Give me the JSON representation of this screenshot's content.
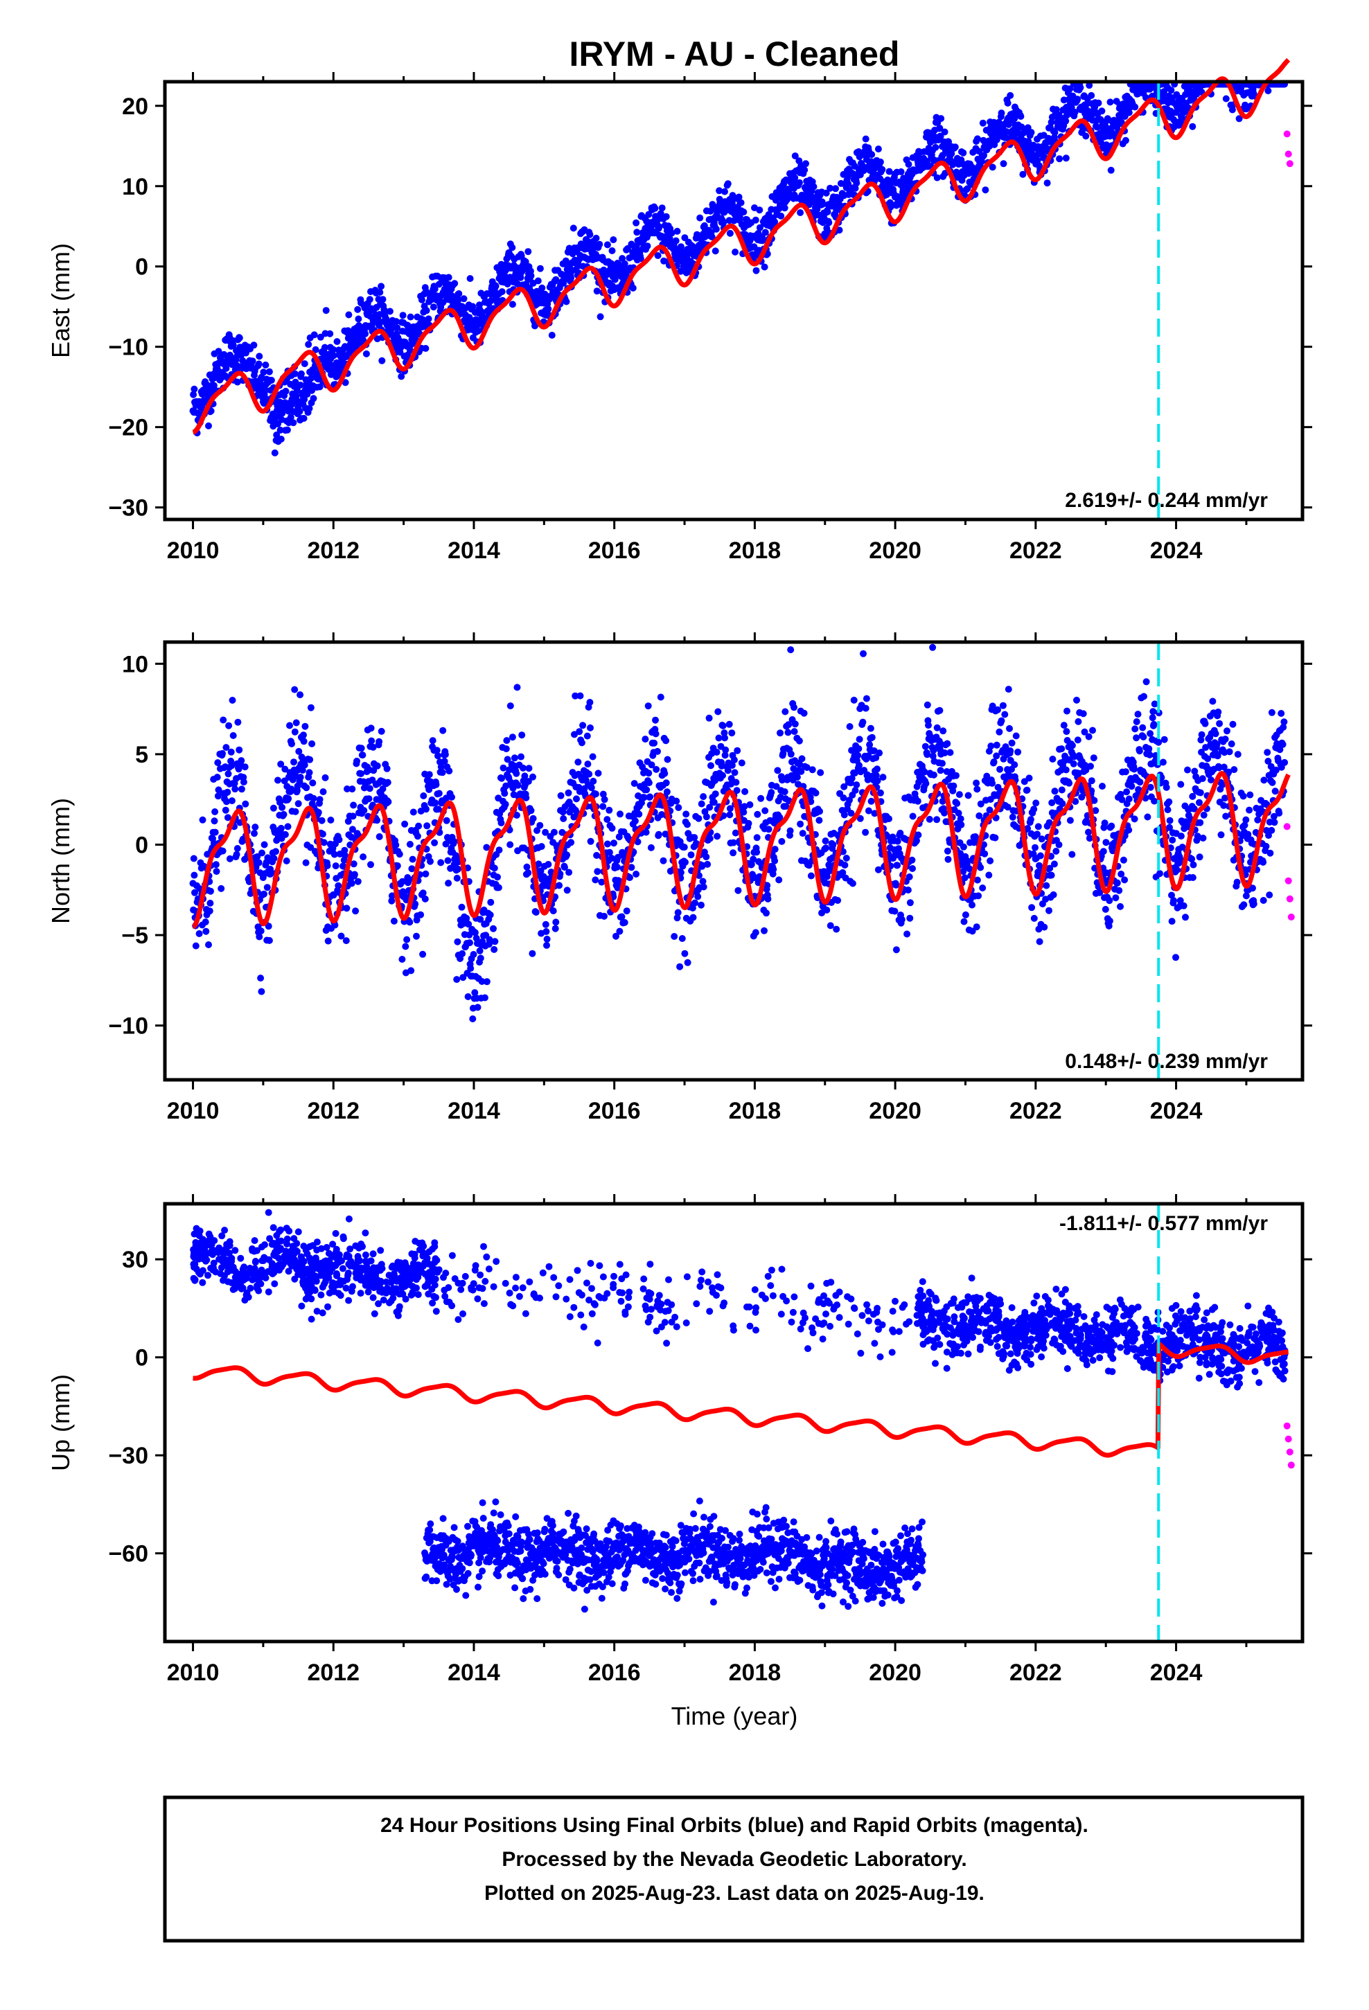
{
  "title": "IRYM  - AU - Cleaned",
  "xlabel": "Time (year)",
  "footer": [
    "24 Hour Positions Using Final Orbits (blue) and Rapid Orbits (magenta).",
    "Processed by the Nevada Geodetic Laboratory.",
    "Plotted on 2025-Aug-23. Last data on 2025-Aug-19."
  ],
  "colors": {
    "final_orbits": "#0000ff",
    "rapid_orbits": "#ff00ff",
    "model": "#ff0000",
    "equipment_change": "#00e5ee"
  },
  "chart_data": [
    {
      "type": "scatter",
      "ylabel": "East (mm)",
      "rate": "2.619+/- 0.244 mm/yr",
      "rate_position": "bottom-right",
      "xlim": [
        2009.6,
        2025.8
      ],
      "ylim": [
        -31.5,
        23
      ],
      "xticks": [
        "2010",
        "2012",
        "2014",
        "2016",
        "2018",
        "2020",
        "2022",
        "2024"
      ],
      "yticks": [
        "−30",
        "−20",
        "−10",
        "0",
        "10",
        "20"
      ],
      "ytick_values": [
        -30,
        -20,
        -10,
        0,
        10,
        20
      ],
      "equipment_change_year": 2023.75,
      "model": {
        "intercept_2010": -17.5,
        "rate": 2.619,
        "annual_amp": 2.5,
        "semiannual_amp": 0.8,
        "offset_after_change": 0
      },
      "final_orbits": {
        "year_range": [
          2010.0,
          2025.55
        ],
        "trend_start": -15,
        "rate": 2.619,
        "annual_amp": 2.6,
        "scatter": 1.6,
        "excursions": [
          {
            "x0": 2011.0,
            "x1": 2011.9,
            "shift": -9
          }
        ]
      },
      "rapid_orbits": {
        "x": [
          2025.58,
          2025.6,
          2025.62
        ],
        "y": [
          16.5,
          14.0,
          12.8
        ]
      }
    },
    {
      "type": "scatter",
      "ylabel": "North (mm)",
      "rate": "0.148+/- 0.239 mm/yr",
      "rate_position": "bottom-right",
      "xlim": [
        2009.6,
        2025.8
      ],
      "ylim": [
        -13,
        11.2
      ],
      "xticks": [
        "2010",
        "2012",
        "2014",
        "2016",
        "2018",
        "2020",
        "2022",
        "2024"
      ],
      "yticks": [
        "−10",
        "−5",
        "0",
        "5",
        "10"
      ],
      "ytick_values": [
        -10,
        -5,
        0,
        5,
        10
      ],
      "equipment_change_year": 2023.75,
      "model": {
        "intercept_2010": -1.0,
        "rate": 0.148,
        "annual_amp": 2.7,
        "semiannual_amp": 1.0,
        "offset_after_change": 0
      },
      "final_orbits": {
        "year_range": [
          2010.0,
          2025.55
        ],
        "trend_start": 0,
        "rate": 0.148,
        "annual_amp": 3.2,
        "scatter": 1.8,
        "excursions": [
          {
            "x0": 2013.5,
            "x1": 2014.4,
            "shift": -5
          },
          {
            "x0": 2011.0,
            "x1": 2011.6,
            "shift": 2.5
          }
        ]
      },
      "rapid_orbits": {
        "x": [
          2025.58,
          2025.6,
          2025.62,
          2025.64
        ],
        "y": [
          1.0,
          -2.0,
          -3.0,
          -4.0
        ]
      }
    },
    {
      "type": "scatter",
      "ylabel": "Up (mm)",
      "rate": "-1.811+/- 0.577 mm/yr",
      "rate_position": "top-right",
      "xlim": [
        2009.6,
        2025.8
      ],
      "ylim": [
        -87,
        47
      ],
      "xticks": [
        "2010",
        "2012",
        "2014",
        "2016",
        "2018",
        "2020",
        "2022",
        "2024"
      ],
      "yticks": [
        "−60",
        "−30",
        "0",
        "30"
      ],
      "ytick_values": [
        -60,
        -30,
        0,
        30
      ],
      "equipment_change_year": 2023.75,
      "model": {
        "intercept_2010": -4.0,
        "rate": -1.811,
        "annual_amp": 2.0,
        "semiannual_amp": 0.5,
        "offset_after_change": 32
      },
      "final_orbits_upper": {
        "segments": [
          [
            2010.0,
            2013.5,
            1
          ],
          [
            2013.5,
            2020.2,
            0.18
          ],
          [
            2020.3,
            2025.55,
            1
          ]
        ],
        "level_start": 30,
        "level_end": 2,
        "scatter": 4.5
      },
      "final_orbits_lower": {
        "year_range": [
          2013.3,
          2020.4
        ],
        "level": -60,
        "scatter": 4.8
      },
      "rapid_orbits": {
        "x": [
          2025.58,
          2025.6,
          2025.62,
          2025.64
        ],
        "y": [
          -21,
          -25,
          -29,
          -33
        ]
      }
    }
  ]
}
